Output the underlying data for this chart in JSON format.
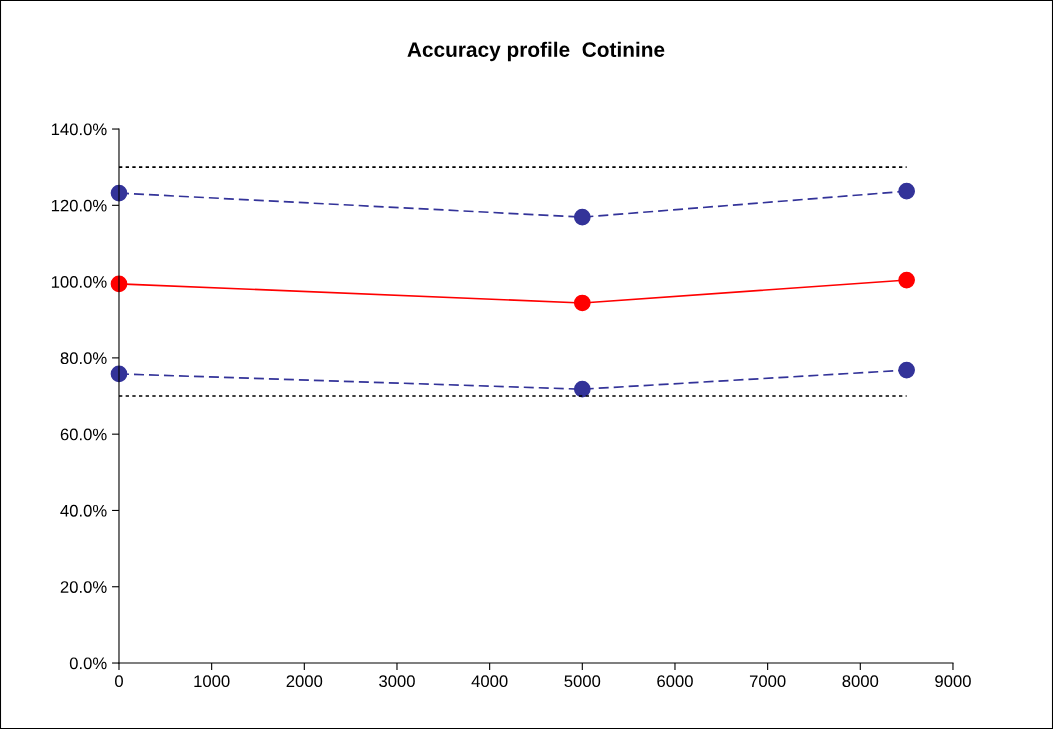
{
  "chart_data": {
    "type": "line",
    "title": "Accuracy profile  Cotinine",
    "x": [
      0,
      5000,
      8500
    ],
    "series": [
      {
        "color": "#000000",
        "line_style": "dotted",
        "marker": "none",
        "values": [
          130,
          null,
          130
        ]
      },
      {
        "color": "#333399",
        "line_style": "dashed",
        "marker": "circle",
        "values": [
          123.2,
          116.9,
          123.7
        ]
      },
      {
        "color": "#ff0000",
        "line_style": "solid",
        "marker": "circle",
        "values": [
          99.4,
          94.4,
          100.4
        ]
      },
      {
        "color": "#333399",
        "line_style": "dashed",
        "marker": "circle",
        "values": [
          75.8,
          71.8,
          76.8
        ]
      },
      {
        "color": "#000000",
        "line_style": "dotted",
        "marker": "none",
        "values": [
          70,
          null,
          70
        ]
      }
    ],
    "xlim": [
      0,
      9000
    ],
    "xticks": [
      0,
      1000,
      2000,
      3000,
      4000,
      5000,
      6000,
      7000,
      8000,
      9000
    ],
    "ylim": [
      0,
      140
    ],
    "yticks": [
      {
        "value": 0,
        "label": "0.0%"
      },
      {
        "value": 20,
        "label": "20.0%"
      },
      {
        "value": 40,
        "label": "40.0%"
      },
      {
        "value": 60,
        "label": "60.0%"
      },
      {
        "value": 80,
        "label": "80.0%"
      },
      {
        "value": 100,
        "label": "100.0%"
      },
      {
        "value": 120,
        "label": "120.0%"
      },
      {
        "value": 140,
        "label": "140.0%"
      }
    ],
    "grid": false,
    "legend": false
  }
}
